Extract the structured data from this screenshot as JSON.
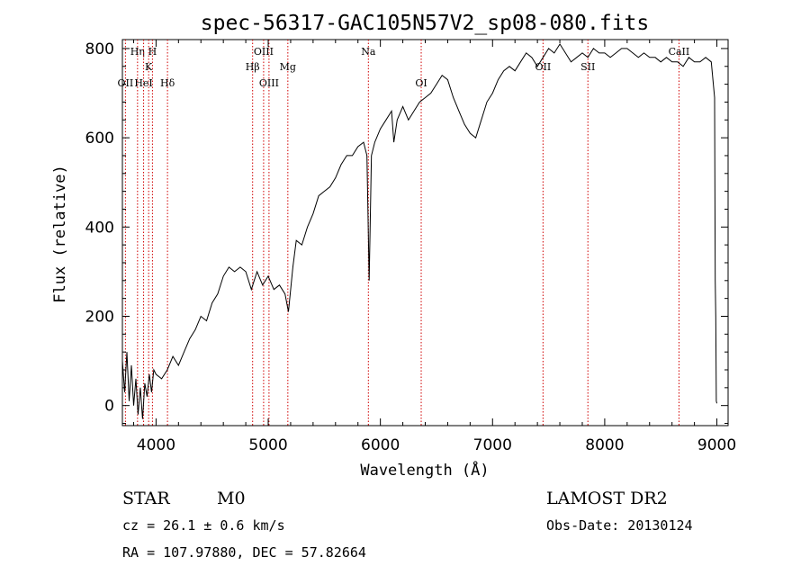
{
  "chart_data": {
    "type": "line",
    "title": "spec-56317-GAC105N57V2_sp08-080.fits",
    "xlabel": "Wavelength (Å)",
    "ylabel": "Flux (relative)",
    "xlim": [
      3700,
      9100
    ],
    "ylim": [
      -45,
      820
    ],
    "x_ticks": [
      4000,
      5000,
      6000,
      7000,
      8000,
      9000
    ],
    "y_ticks": [
      0,
      200,
      400,
      600,
      800
    ],
    "grid": false,
    "line_color": "#000000",
    "marker_color": "#d00000",
    "series": [
      {
        "points": [
          [
            3700,
            100
          ],
          [
            3720,
            30
          ],
          [
            3740,
            120
          ],
          [
            3760,
            10
          ],
          [
            3780,
            90
          ],
          [
            3800,
            0
          ],
          [
            3820,
            60
          ],
          [
            3840,
            -20
          ],
          [
            3860,
            40
          ],
          [
            3880,
            -30
          ],
          [
            3900,
            50
          ],
          [
            3920,
            20
          ],
          [
            3940,
            70
          ],
          [
            3960,
            30
          ],
          [
            3980,
            80
          ],
          [
            4000,
            70
          ],
          [
            4050,
            60
          ],
          [
            4100,
            80
          ],
          [
            4150,
            110
          ],
          [
            4200,
            90
          ],
          [
            4250,
            120
          ],
          [
            4300,
            150
          ],
          [
            4350,
            170
          ],
          [
            4400,
            200
          ],
          [
            4450,
            190
          ],
          [
            4500,
            230
          ],
          [
            4550,
            250
          ],
          [
            4600,
            290
          ],
          [
            4650,
            310
          ],
          [
            4700,
            300
          ],
          [
            4750,
            310
          ],
          [
            4800,
            300
          ],
          [
            4850,
            260
          ],
          [
            4900,
            300
          ],
          [
            4950,
            270
          ],
          [
            5000,
            290
          ],
          [
            5050,
            260
          ],
          [
            5100,
            270
          ],
          [
            5150,
            250
          ],
          [
            5180,
            210
          ],
          [
            5220,
            310
          ],
          [
            5250,
            370
          ],
          [
            5300,
            360
          ],
          [
            5350,
            400
          ],
          [
            5400,
            430
          ],
          [
            5450,
            470
          ],
          [
            5500,
            480
          ],
          [
            5550,
            490
          ],
          [
            5600,
            510
          ],
          [
            5650,
            540
          ],
          [
            5700,
            560
          ],
          [
            5750,
            560
          ],
          [
            5800,
            580
          ],
          [
            5850,
            590
          ],
          [
            5880,
            560
          ],
          [
            5900,
            280
          ],
          [
            5920,
            560
          ],
          [
            5950,
            590
          ],
          [
            6000,
            620
          ],
          [
            6050,
            640
          ],
          [
            6100,
            660
          ],
          [
            6120,
            590
          ],
          [
            6150,
            640
          ],
          [
            6200,
            670
          ],
          [
            6250,
            640
          ],
          [
            6300,
            660
          ],
          [
            6350,
            680
          ],
          [
            6400,
            690
          ],
          [
            6450,
            700
          ],
          [
            6500,
            720
          ],
          [
            6550,
            740
          ],
          [
            6600,
            730
          ],
          [
            6650,
            690
          ],
          [
            6700,
            660
          ],
          [
            6750,
            630
          ],
          [
            6800,
            610
          ],
          [
            6850,
            600
          ],
          [
            6900,
            640
          ],
          [
            6950,
            680
          ],
          [
            7000,
            700
          ],
          [
            7050,
            730
          ],
          [
            7100,
            750
          ],
          [
            7150,
            760
          ],
          [
            7200,
            750
          ],
          [
            7250,
            770
          ],
          [
            7300,
            790
          ],
          [
            7350,
            780
          ],
          [
            7400,
            760
          ],
          [
            7450,
            780
          ],
          [
            7500,
            800
          ],
          [
            7550,
            790
          ],
          [
            7600,
            810
          ],
          [
            7650,
            790
          ],
          [
            7700,
            770
          ],
          [
            7750,
            780
          ],
          [
            7800,
            790
          ],
          [
            7850,
            780
          ],
          [
            7900,
            800
          ],
          [
            7950,
            790
          ],
          [
            8000,
            790
          ],
          [
            8050,
            780
          ],
          [
            8100,
            790
          ],
          [
            8150,
            800
          ],
          [
            8200,
            800
          ],
          [
            8250,
            790
          ],
          [
            8300,
            780
          ],
          [
            8350,
            790
          ],
          [
            8400,
            780
          ],
          [
            8450,
            780
          ],
          [
            8500,
            770
          ],
          [
            8550,
            780
          ],
          [
            8600,
            770
          ],
          [
            8650,
            770
          ],
          [
            8700,
            760
          ],
          [
            8750,
            780
          ],
          [
            8800,
            770
          ],
          [
            8850,
            770
          ],
          [
            8900,
            780
          ],
          [
            8950,
            770
          ],
          [
            8980,
            690
          ],
          [
            8985,
            280
          ],
          [
            8990,
            200
          ],
          [
            8995,
            10
          ],
          [
            9000,
            5
          ]
        ]
      }
    ],
    "line_markers": [
      {
        "x": 3727,
        "label": "OII",
        "row": 3
      },
      {
        "x": 3835,
        "label": "Hη",
        "row": 1
      },
      {
        "x": 3889,
        "label": "HeI",
        "row": 3
      },
      {
        "x": 3934,
        "label": "K",
        "row": 2
      },
      {
        "x": 3968,
        "label": "H",
        "row": 1
      },
      {
        "x": 4102,
        "label": "Hδ",
        "row": 3
      },
      {
        "x": 4861,
        "label": "Hβ",
        "row": 2
      },
      {
        "x": 4959,
        "label": "OIII",
        "row": 1
      },
      {
        "x": 5007,
        "label": "OIII",
        "row": 3
      },
      {
        "x": 5175,
        "label": "Mg",
        "row": 2
      },
      {
        "x": 5893,
        "label": "Na",
        "row": 1
      },
      {
        "x": 6364,
        "label": "OI",
        "row": 3
      },
      {
        "x": 7450,
        "label": "OII",
        "row": 2
      },
      {
        "x": 7850,
        "label": "SII",
        "row": 2
      },
      {
        "x": 8662,
        "label": "CaII",
        "row": 1
      }
    ]
  },
  "info": {
    "class": "STAR",
    "subclass": "M0",
    "survey": "LAMOST DR2",
    "cz": "cz = 26.1 ± 0.6 km/s",
    "obs_date": "Obs-Date: 20130124",
    "coords": "RA = 107.97880, DEC =  57.82664"
  }
}
